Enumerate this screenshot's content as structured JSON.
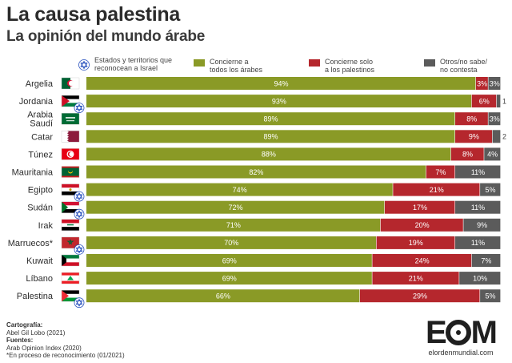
{
  "title": "La causa palestina",
  "subtitle": "La opinión del mundo árabe",
  "legend": {
    "israel_note": "Estados y territorios que\nreconocean a Israel",
    "items": [
      {
        "label": "Concierne a\ntodos los árabes",
        "color": "#8a9a26"
      },
      {
        "label": "Concierne solo\na los palestinos",
        "color": "#b5272d"
      },
      {
        "label": "Otros/no sabe/\nno contesta",
        "color": "#5b5b5b"
      }
    ]
  },
  "chart_data": {
    "type": "bar",
    "orientation": "horizontal",
    "stacked": true,
    "unit": "%",
    "categories": [
      "Argelia",
      "Jordania",
      "Arabia\nSaudí",
      "Catar",
      "Túnez",
      "Mauritania",
      "Egipto",
      "Sudán",
      "Irak",
      "Marruecos*",
      "Kuwait",
      "Líbano",
      "Palestina"
    ],
    "recognizes_israel": [
      false,
      true,
      false,
      false,
      false,
      false,
      true,
      true,
      false,
      true,
      false,
      false,
      true
    ],
    "series": [
      {
        "name": "Concierne a todos los árabes",
        "color": "#8a9a26",
        "values": [
          94,
          93,
          89,
          89,
          88,
          82,
          74,
          72,
          71,
          70,
          69,
          69,
          66
        ]
      },
      {
        "name": "Concierne solo a los palestinos",
        "color": "#b5272d",
        "values": [
          3,
          6,
          8,
          9,
          8,
          7,
          21,
          17,
          20,
          19,
          24,
          21,
          29
        ]
      },
      {
        "name": "Otros/no sabe/no contesta",
        "color": "#5b5b5b",
        "values": [
          3,
          1,
          3,
          2,
          4,
          11,
          5,
          11,
          9,
          11,
          7,
          10,
          5
        ]
      }
    ],
    "xlim": [
      0,
      100
    ]
  },
  "flags": [
    "algeria",
    "jordan",
    "saudi",
    "qatar",
    "tunisia",
    "mauritania",
    "egypt",
    "sudan",
    "iraq",
    "morocco",
    "kuwait",
    "lebanon",
    "palestine"
  ],
  "footer": {
    "cartografia_label": "Cartografía:",
    "cartografia": "Abel Gil Lobo (2021)",
    "fuentes_label": "Fuentes:",
    "fuentes": "Arab Opinion Index (2020)",
    "nota": "*En proceso de reconocimiento (01/2021)"
  },
  "logo": {
    "text_e": "E",
    "text_m": "M",
    "site": "elordenmundial.com"
  }
}
